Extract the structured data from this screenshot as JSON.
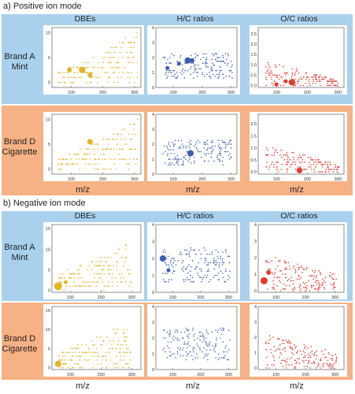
{
  "sections": [
    {
      "title": "a)  Positive ion mode"
    },
    {
      "title": "b)  Negative ion mode"
    }
  ],
  "columns": [
    {
      "label": "DBEs",
      "color": "#e2b426"
    },
    {
      "label": "H/C ratios",
      "color": "#3a5fb0"
    },
    {
      "label": "O/C ratios",
      "color": "#e23a2c"
    }
  ],
  "rows": [
    {
      "line1": "Brand A",
      "line2": "Mint",
      "band_color": "#a9d1ee"
    },
    {
      "line1": "Brand D",
      "line2": "Cigarette",
      "band_color": "#f6b184"
    }
  ],
  "xlabel": "m/z",
  "chart_data": [
    {
      "type": "scatter",
      "section": "Positive ion mode",
      "row": "Brand A Mint",
      "metric": "DBEs",
      "xlim": [
        40,
        320
      ],
      "ylim": [
        -1,
        11
      ],
      "xticks": [
        100,
        200,
        300
      ],
      "yticks": [
        0,
        5,
        10
      ],
      "big_points": [
        {
          "x": 95,
          "y": 2.5,
          "r": 3
        },
        {
          "x": 135,
          "y": 2.5,
          "r": 4
        },
        {
          "x": 160,
          "y": 1.5,
          "r": 3
        }
      ]
    },
    {
      "type": "scatter",
      "section": "Positive ion mode",
      "row": "Brand A Mint",
      "metric": "H/C ratios",
      "xlim": [
        40,
        320
      ],
      "ylim": [
        0,
        4
      ],
      "xticks": [
        100,
        200,
        300
      ],
      "yticks": [
        0,
        1,
        2,
        3,
        4
      ],
      "big_points": [
        {
          "x": 80,
          "y": 1.3,
          "r": 2.5
        },
        {
          "x": 120,
          "y": 1.6,
          "r": 2.5
        },
        {
          "x": 150,
          "y": 1.8,
          "r": 4
        },
        {
          "x": 165,
          "y": 1.8,
          "r": 3
        }
      ]
    },
    {
      "type": "scatter",
      "section": "Positive ion mode",
      "row": "Brand A Mint",
      "metric": "O/C ratios",
      "xlim": [
        40,
        320
      ],
      "ylim": [
        -0.1,
        2.8
      ],
      "xticks": [
        100,
        200,
        300
      ],
      "yticks": [
        0.0,
        0.5,
        1.0,
        1.5,
        2.0,
        2.5
      ],
      "big_points": [
        {
          "x": 100,
          "y": 0.05,
          "r": 2.5
        },
        {
          "x": 130,
          "y": 0.2,
          "r": 2.5
        },
        {
          "x": 150,
          "y": 0.15,
          "r": 4
        }
      ]
    },
    {
      "type": "scatter",
      "section": "Positive ion mode",
      "row": "Brand D Cigarette",
      "metric": "DBEs",
      "xlim": [
        40,
        320
      ],
      "ylim": [
        -1,
        11
      ],
      "xticks": [
        100,
        200,
        300
      ],
      "yticks": [
        0,
        5,
        10
      ],
      "big_points": [
        {
          "x": 160,
          "y": 5.5,
          "r": 3.5
        }
      ]
    },
    {
      "type": "scatter",
      "section": "Positive ion mode",
      "row": "Brand D Cigarette",
      "metric": "H/C ratios",
      "xlim": [
        40,
        320
      ],
      "ylim": [
        0,
        4
      ],
      "xticks": [
        100,
        200,
        300
      ],
      "yticks": [
        0,
        1,
        2,
        3,
        4
      ],
      "big_points": [
        {
          "x": 160,
          "y": 1.4,
          "r": 4
        }
      ]
    },
    {
      "type": "scatter",
      "section": "Positive ion mode",
      "row": "Brand D Cigarette",
      "metric": "O/C ratios",
      "xlim": [
        40,
        320
      ],
      "ylim": [
        -0.1,
        2.4
      ],
      "xticks": [
        100,
        200,
        300
      ],
      "yticks": [
        0.0,
        0.5,
        1.0,
        1.5,
        2.0
      ],
      "big_points": [
        {
          "x": 175,
          "y": 0.05,
          "r": 3.5
        }
      ]
    },
    {
      "type": "scatter",
      "section": "Negative ion mode",
      "row": "Brand A Mint",
      "metric": "DBEs",
      "xlim": [
        40,
        330
      ],
      "ylim": [
        -0.5,
        16
      ],
      "xticks": [
        100,
        200,
        300
      ],
      "yticks": [
        0,
        5,
        10,
        15
      ],
      "big_points": [
        {
          "x": 60,
          "y": 1,
          "r": 5
        },
        {
          "x": 85,
          "y": 2,
          "r": 2.5
        }
      ]
    },
    {
      "type": "scatter",
      "section": "Negative ion mode",
      "row": "Brand A Mint",
      "metric": "H/C ratios",
      "xlim": [
        40,
        330
      ],
      "ylim": [
        0,
        4
      ],
      "xticks": [
        100,
        200,
        300
      ],
      "yticks": [
        0,
        1,
        2,
        3,
        4
      ],
      "big_points": [
        {
          "x": 65,
          "y": 2.0,
          "r": 4
        },
        {
          "x": 85,
          "y": 1.3,
          "r": 2.5
        }
      ]
    },
    {
      "type": "scatter",
      "section": "Negative ion mode",
      "row": "Brand A Mint",
      "metric": "O/C ratios",
      "xlim": [
        40,
        330
      ],
      "ylim": [
        -0.1,
        4
      ],
      "xticks": [
        100,
        200,
        300
      ],
      "yticks": [
        0,
        1,
        2,
        3,
        4
      ],
      "big_points": [
        {
          "x": 60,
          "y": 0.6,
          "r": 4.5
        },
        {
          "x": 75,
          "y": 1.1,
          "r": 3
        }
      ]
    },
    {
      "type": "scatter",
      "section": "Negative ion mode",
      "row": "Brand D Cigarette",
      "metric": "DBEs",
      "xlim": [
        40,
        330
      ],
      "ylim": [
        -0.5,
        16
      ],
      "xticks": [
        100,
        200,
        300
      ],
      "yticks": [
        0,
        5,
        10,
        15
      ],
      "big_points": [
        {
          "x": 60,
          "y": 1,
          "r": 4
        }
      ]
    },
    {
      "type": "scatter",
      "section": "Negative ion mode",
      "row": "Brand D Cigarette",
      "metric": "H/C ratios",
      "xlim": [
        40,
        330
      ],
      "ylim": [
        0,
        4
      ],
      "xticks": [
        100,
        200,
        300
      ],
      "yticks": [
        0,
        1,
        2,
        3,
        4
      ],
      "big_points": []
    },
    {
      "type": "scatter",
      "section": "Negative ion mode",
      "row": "Brand D Cigarette",
      "metric": "O/C ratios",
      "xlim": [
        40,
        330
      ],
      "ylim": [
        -0.1,
        4
      ],
      "xticks": [
        100,
        200,
        300
      ],
      "yticks": [
        0,
        1,
        2,
        3,
        4
      ],
      "big_points": []
    }
  ]
}
